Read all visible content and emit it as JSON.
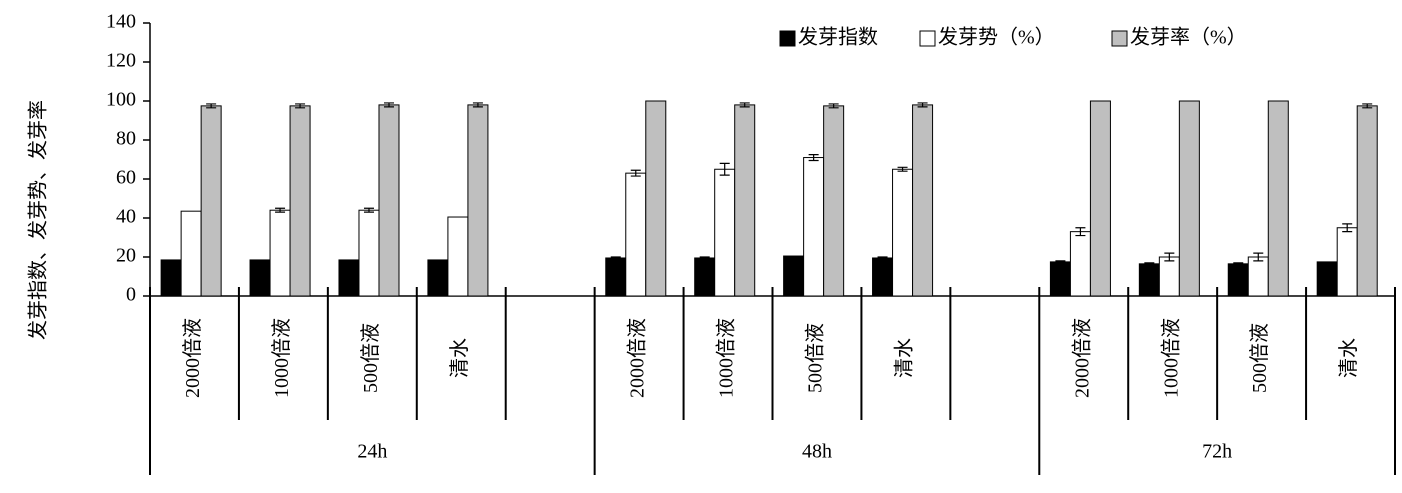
{
  "chart_data": {
    "type": "bar",
    "y_label": "发芽指数、发芽势、发芽率",
    "categories": [
      "2000倍液",
      "1000倍液",
      "500倍液",
      "清水",
      null,
      "2000倍液",
      "1000倍液",
      "500倍液",
      "清水",
      null,
      "2000倍液",
      "1000倍液",
      "500倍液",
      "清水"
    ],
    "groups": [
      {
        "name": "24h",
        "size": 5
      },
      {
        "name": "48h",
        "size": 5
      },
      {
        "name": "72h",
        "size": 4
      }
    ],
    "series": [
      {
        "name": "发芽指数",
        "color": "#000000",
        "values": [
          18.5,
          18.5,
          18.5,
          18.5,
          null,
          19.5,
          19.5,
          20.5,
          19.5,
          null,
          17.5,
          16.5,
          16.5,
          17.5
        ],
        "errors": [
          0,
          0,
          0,
          0,
          null,
          0.5,
          0.5,
          0,
          0.5,
          null,
          0.5,
          0.5,
          0.5,
          0
        ]
      },
      {
        "name": "发芽势（%）",
        "color": "#ffffff",
        "values": [
          43.5,
          44,
          44,
          40.5,
          null,
          63,
          65,
          71,
          65,
          null,
          33,
          20,
          20,
          35
        ],
        "errors": [
          0,
          1,
          1,
          0,
          null,
          1.5,
          3,
          1.5,
          1,
          null,
          2,
          2,
          2,
          2
        ]
      },
      {
        "name": "发芽率（%）",
        "color": "#bfbfbf",
        "values": [
          97.5,
          97.5,
          98,
          98,
          null,
          100,
          98,
          97.5,
          98,
          null,
          100,
          100,
          100,
          97.5
        ],
        "errors": [
          1,
          1,
          1,
          1,
          null,
          0,
          1,
          1,
          1,
          null,
          0,
          0,
          0,
          1
        ]
      }
    ],
    "ylim": [
      0,
      140
    ],
    "yticks": [
      0,
      20,
      40,
      60,
      80,
      100,
      120,
      140
    ],
    "grid": false,
    "legend": "top-right"
  }
}
